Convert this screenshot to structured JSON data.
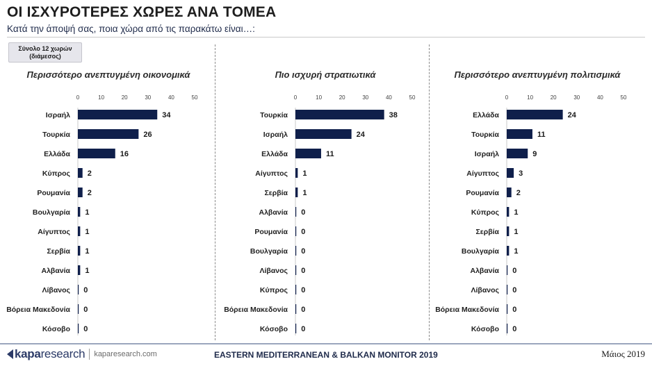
{
  "header": {
    "title": "ΟΙ ΙΣΧΥΡΟΤΕΡΕΣ ΧΩΡΕΣ ΑΝΑ ΤΟΜΕΑ",
    "subtitle": "Κατά την άποψή σας, ποια χώρα από τις παρακάτω είναι…:",
    "base_note_line1": "Σύνολο 12 χωρών",
    "base_note_line2": "(διάμεσος)"
  },
  "footer": {
    "logo_bold": "kapa",
    "logo_light": "research",
    "site": "kaparesearch.com",
    "center": "EASTERN MEDITERRANEAN & BALKAN MONITOR 2019",
    "date": "Μάιος 2019"
  },
  "colors": {
    "bar": "#0f1f4b",
    "axis": "#c8c8c8",
    "divider": "#8a8a8a"
  },
  "chart_data": [
    {
      "type": "bar",
      "orientation": "horizontal",
      "title": "Περισσότερο ανεπτυγμένη οικονομικά",
      "xlim": [
        0,
        50
      ],
      "ticks": [
        0,
        10,
        20,
        30,
        40,
        50
      ],
      "categories": [
        "Ισραήλ",
        "Τουρκία",
        "Ελλάδα",
        "Κύπρος",
        "Ρουμανία",
        "Βουλγαρία",
        "Αίγυπτος",
        "Σερβία",
        "Αλβανία",
        "Λίβανος",
        "Βόρεια Μακεδονία",
        "Κόσοβο"
      ],
      "values": [
        34,
        26,
        16,
        2,
        2,
        1,
        1,
        1,
        1,
        0,
        0,
        0
      ]
    },
    {
      "type": "bar",
      "orientation": "horizontal",
      "title": "Πιο ισχυρή στρατιωτικά",
      "xlim": [
        0,
        50
      ],
      "ticks": [
        0,
        10,
        20,
        30,
        40,
        50
      ],
      "categories": [
        "Τουρκία",
        "Ισραήλ",
        "Ελλάδα",
        "Αίγυπτος",
        "Σερβία",
        "Αλβανία",
        "Ρουμανία",
        "Βουλγαρία",
        "Λίβανος",
        "Κύπρος",
        "Βόρεια Μακεδονία",
        "Κόσοβο"
      ],
      "values": [
        38,
        24,
        11,
        1,
        1,
        0,
        0,
        0,
        0,
        0,
        0,
        0
      ]
    },
    {
      "type": "bar",
      "orientation": "horizontal",
      "title": "Περισσότερο ανεπτυγμένη πολιτισμικά",
      "xlim": [
        0,
        50
      ],
      "ticks": [
        0,
        10,
        20,
        30,
        40,
        50
      ],
      "categories": [
        "Ελλάδα",
        "Τουρκία",
        "Ισραήλ",
        "Αίγυπτος",
        "Ρουμανία",
        "Κύπρος",
        "Σερβία",
        "Βουλγαρία",
        "Αλβανία",
        "Λίβανος",
        "Βόρεια Μακεδονία",
        "Κόσοβο"
      ],
      "values": [
        24,
        11,
        9,
        3,
        2,
        1,
        1,
        1,
        0,
        0,
        0,
        0
      ]
    }
  ]
}
